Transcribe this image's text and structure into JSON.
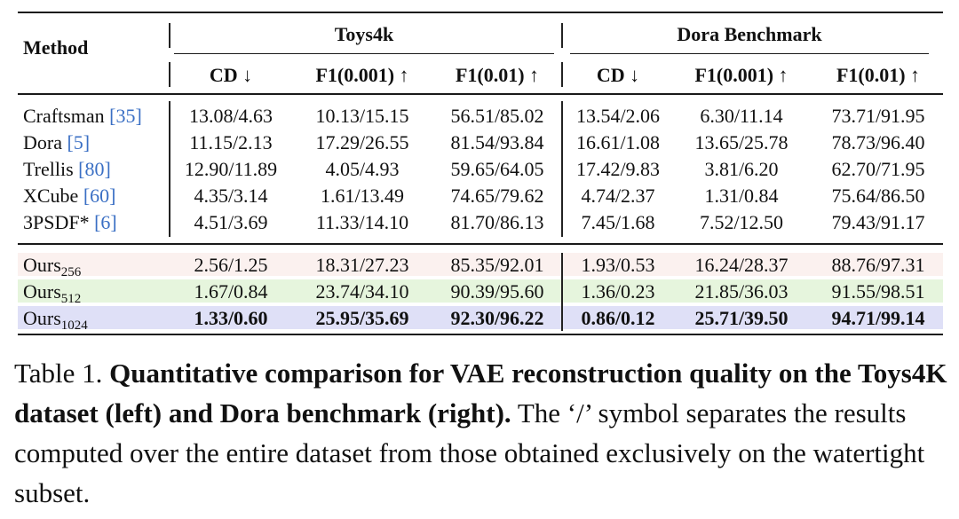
{
  "table": {
    "method_header": "Method",
    "groups": [
      "Toys4k",
      "Dora Benchmark"
    ],
    "columns": [
      "CD ↓",
      "F1(0.001) ↑",
      "F1(0.01) ↑",
      "CD ↓",
      "F1(0.001) ↑",
      "F1(0.01) ↑"
    ],
    "baseline_rows": [
      {
        "name": "Craftsman",
        "cite": "[35]",
        "values": [
          "13.08/4.63",
          "10.13/15.15",
          "56.51/85.02",
          "13.54/2.06",
          "6.30/11.14",
          "73.71/91.95"
        ]
      },
      {
        "name": "Dora",
        "cite": "[5]",
        "values": [
          "11.15/2.13",
          "17.29/26.55",
          "81.54/93.84",
          "16.61/1.08",
          "13.65/25.78",
          "78.73/96.40"
        ]
      },
      {
        "name": "Trellis",
        "cite": "[80]",
        "values": [
          "12.90/11.89",
          "4.05/4.93",
          "59.65/64.05",
          "17.42/9.83",
          "3.81/6.20",
          "62.70/71.95"
        ]
      },
      {
        "name": "XCube",
        "cite": "[60]",
        "values": [
          "4.35/3.14",
          "1.61/13.49",
          "74.65/79.62",
          "4.74/2.37",
          "1.31/0.84",
          "75.64/86.50"
        ]
      },
      {
        "name": "3PSDF*",
        "cite": "[6]",
        "values": [
          "4.51/3.69",
          "11.33/14.10",
          "81.70/86.13",
          "7.45/1.68",
          "7.52/12.50",
          "79.43/91.17"
        ]
      }
    ],
    "ours_rows": [
      {
        "name": "Ours",
        "sub": "256",
        "color": "#fbf1ef",
        "values": [
          "2.56/1.25",
          "18.31/27.23",
          "85.35/92.01",
          "1.93/0.53",
          "16.24/28.37",
          "88.76/97.31"
        ]
      },
      {
        "name": "Ours",
        "sub": "512",
        "color": "#e6f5dd",
        "values": [
          "1.67/0.84",
          "23.74/34.10",
          "90.39/95.60",
          "1.36/0.23",
          "21.85/36.03",
          "91.55/98.51"
        ]
      },
      {
        "name": "Ours",
        "sub": "1024",
        "color": "#dfe0f7",
        "values": [
          "1.33/0.60",
          "25.95/35.69",
          "92.30/96.22",
          "0.86/0.12",
          "25.71/39.50",
          "94.71/99.14"
        ]
      }
    ]
  },
  "caption": {
    "label": "Table 1.",
    "bold": "Quantitative comparison for VAE reconstruction quality on the Toys4K dataset (left) and Dora benchmark (right).",
    "rest": "The ‘/’ symbol separates the results computed over the entire dataset from those obtained exclusively on the watertight subset."
  }
}
